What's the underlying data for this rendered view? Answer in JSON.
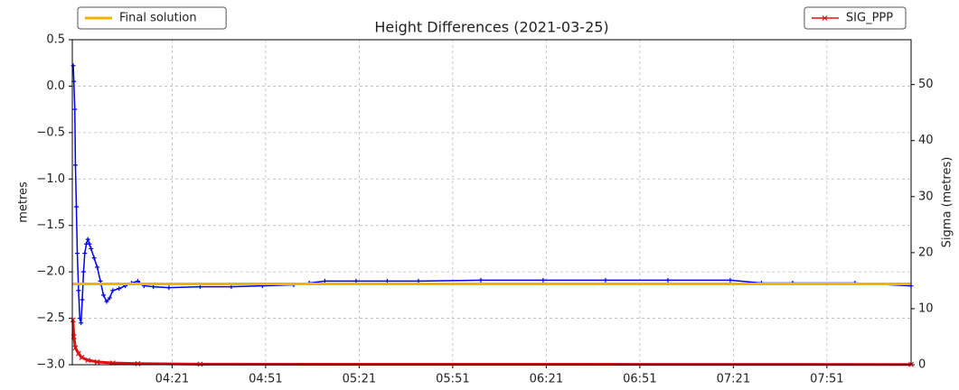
{
  "chart_data": {
    "type": "line",
    "title": "Height Differences (2021-03-25)",
    "ylabel": "metres",
    "y2label": "Sigma (metres)",
    "xlim": [
      229,
      498
    ],
    "xticks": [
      {
        "value": 261,
        "label": "04:21"
      },
      {
        "value": 291,
        "label": "04:51"
      },
      {
        "value": 321,
        "label": "05:21"
      },
      {
        "value": 351,
        "label": "05:51"
      },
      {
        "value": 381,
        "label": "06:21"
      },
      {
        "value": 411,
        "label": "06:51"
      },
      {
        "value": 441,
        "label": "07:21"
      },
      {
        "value": 471,
        "label": "07:51"
      }
    ],
    "ylim": [
      -3.0,
      0.5
    ],
    "yticks": [
      {
        "value": -3.0,
        "label": "−3.0"
      },
      {
        "value": -2.5,
        "label": "−2.5"
      },
      {
        "value": -2.0,
        "label": "−2.0"
      },
      {
        "value": -1.5,
        "label": "−1.5"
      },
      {
        "value": -1.0,
        "label": "−1.0"
      },
      {
        "value": -0.5,
        "label": "−0.5"
      },
      {
        "value": 0.0,
        "label": "0.0"
      },
      0.5
    ],
    "y2lim": [
      0,
      58
    ],
    "y2ticks": [
      0,
      10,
      20,
      30,
      40,
      50
    ],
    "grid": true,
    "legend": {
      "y": "upper left",
      "y2": "upper right"
    },
    "series": [
      {
        "color": "#0000ee",
        "marker": "plus",
        "x": [
          229.3,
          229.5,
          229.8,
          230,
          230.3,
          230.6,
          231,
          231.4,
          231.8,
          232.2,
          232.6,
          233,
          233.5,
          234,
          234.5,
          235,
          236,
          237,
          238,
          239,
          240,
          241,
          242,
          244,
          246,
          248,
          250,
          252,
          255,
          260,
          270,
          280,
          290,
          300,
          305,
          310,
          320,
          330,
          340,
          360,
          380,
          400,
          420,
          440,
          450,
          460,
          480,
          498
        ],
        "values": [
          0.22,
          0.05,
          -0.25,
          -0.85,
          -1.3,
          -1.8,
          -2.2,
          -2.5,
          -2.55,
          -2.3,
          -2.0,
          -1.8,
          -1.7,
          -1.65,
          -1.7,
          -1.75,
          -1.85,
          -1.95,
          -2.1,
          -2.25,
          -2.32,
          -2.28,
          -2.2,
          -2.18,
          -2.15,
          -2.12,
          -2.1,
          -2.15,
          -2.16,
          -2.17,
          -2.16,
          -2.16,
          -2.15,
          -2.14,
          -2.12,
          -2.1,
          -2.1,
          -2.1,
          -2.1,
          -2.09,
          -2.09,
          -2.09,
          -2.09,
          -2.09,
          -2.12,
          -2.12,
          -2.12,
          -2.15
        ]
      },
      {
        "name": "Final solution",
        "color": "#f5b301",
        "x": [
          229,
          498
        ],
        "values": [
          -2.13,
          -2.13
        ]
      },
      {
        "name": "SIG_PPP",
        "color": "#dd1111",
        "axis": "y2",
        "marker": "x",
        "x": [
          229.2,
          229.5,
          230,
          231,
          232,
          234,
          237,
          242,
          250,
          270,
          498
        ],
        "values": [
          8,
          5,
          3,
          2,
          1.3,
          0.8,
          0.5,
          0.3,
          0.2,
          0.1,
          0.05
        ]
      }
    ]
  }
}
